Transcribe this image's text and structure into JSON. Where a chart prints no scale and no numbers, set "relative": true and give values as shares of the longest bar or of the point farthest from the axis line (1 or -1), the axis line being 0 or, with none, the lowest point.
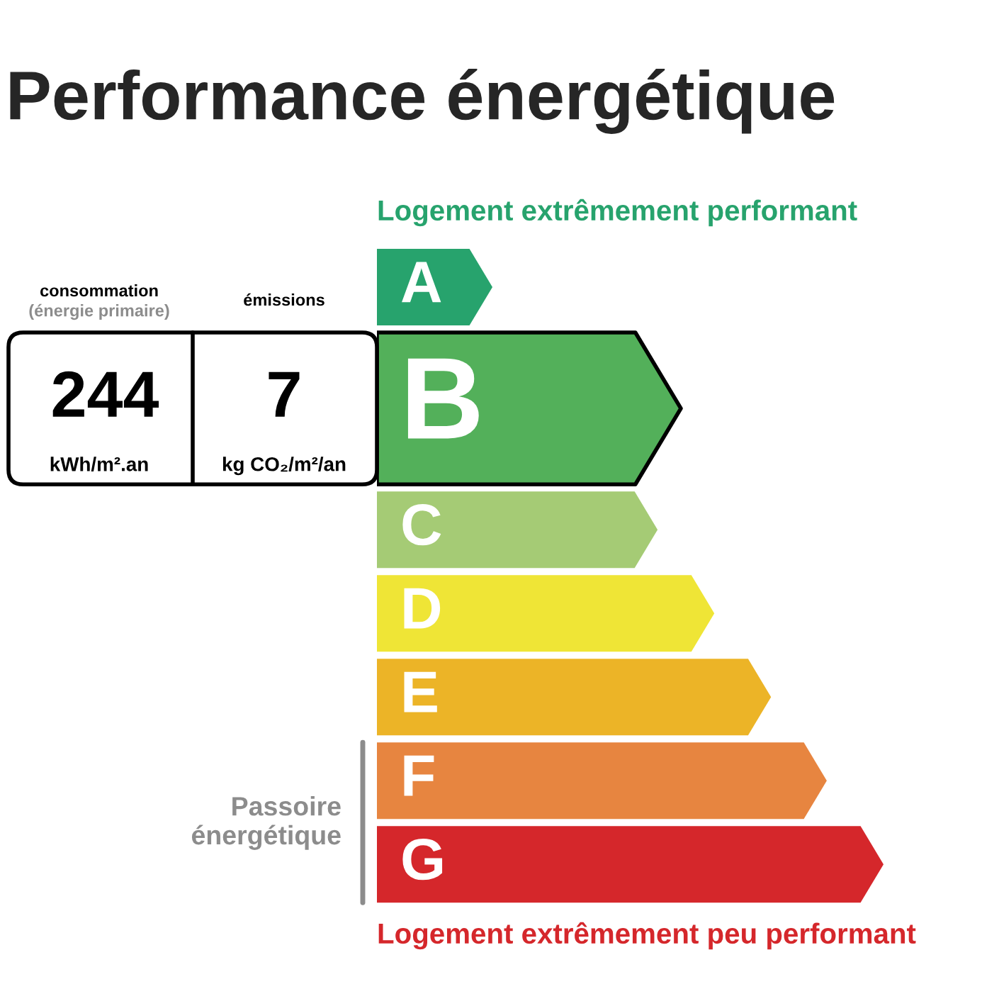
{
  "chart_data": {
    "type": "bar",
    "orientation": "horizontal",
    "relative": true,
    "title": "Performance énergétique",
    "categories": [
      "A",
      "B",
      "C",
      "D",
      "E",
      "F",
      "G"
    ],
    "values": [
      0.228,
      0.6,
      0.554,
      0.666,
      0.778,
      0.888,
      1
    ],
    "colors": [
      "#27a36d",
      "#53b05a",
      "#a5cb75",
      "#efe536",
      "#ecb427",
      "#e78540",
      "#d5272b"
    ],
    "annotations": [
      "Logement extrêmement performant",
      "Logement extrêmement peu performant",
      "consommation",
      "(énergie primaire)",
      "émissions",
      "244",
      "kWh/m².an",
      "7",
      "kg CO₂/m²/an",
      "Passoire\nénergétique"
    ]
  }
}
